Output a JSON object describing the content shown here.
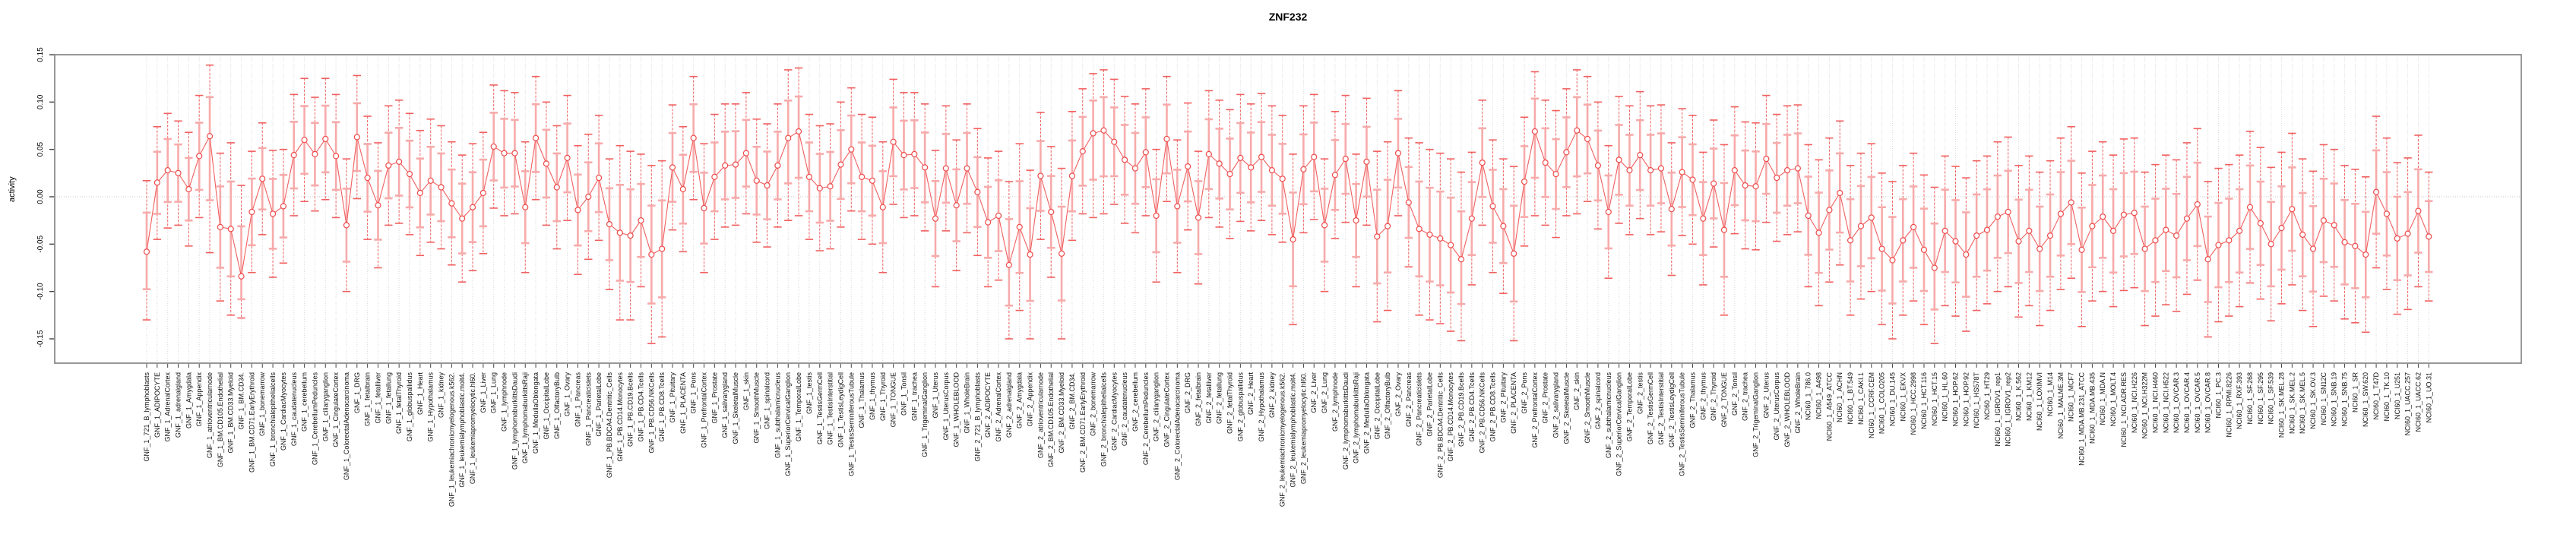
{
  "chart_data": {
    "type": "line",
    "title": "ZNF232",
    "xlabel": "",
    "ylabel": "activity",
    "ylim": [
      -0.18,
      0.15
    ],
    "y_ticks": [
      0.15,
      0.1,
      0.05,
      0.0,
      -0.05,
      -0.1,
      -0.15
    ],
    "grid": "vertical dotted per category, dotted horizontal line at 0",
    "legend": "none",
    "marker": "open-circle with inner and outer error bars",
    "colors": {
      "line": "#f15f5f",
      "outer_bar": "#f15f5f",
      "inner_bar": "#f7aaaa",
      "point_stroke": "#ee4b4b",
      "gridline": "#d9d9d9",
      "zero_line": "#c9c9c9",
      "frame": "#8c8c8c",
      "text": "#000000"
    },
    "categories": [
      "GNF_1_721_B_lymphoblasts",
      "GNF_1_ADIPOCYTE",
      "GNF_1_AdrenalCortex",
      "GNF_1_adrenalgland",
      "GNF_1_Amygdala",
      "GNF_1_Appendix",
      "GNF_1_atrioventricularnode",
      "GNF_1_BM.CD105.Endothelial",
      "GNF_1_BM.CD33.Myeloid",
      "GNF_1_BM.CD34.",
      "GNF_1_BM.CD71.EarlyErythroid",
      "GNF_1_bonemarrow",
      "GNF_1_bronchialepithelialcells",
      "GNF_1_CardiacMyocytes",
      "GNF_1_caudatenucleus",
      "GNF_1_cerebellum",
      "GNF_1_CerebellumPeduncles",
      "GNF_1_ciliaryganglion",
      "GNF_1_CingulateCortex",
      "GNF_1_ColorectalAdenocarcinoma",
      "GNF_1_DRG",
      "GNF_1_fetalbrain",
      "GNF_1_fetalliver",
      "GNF_1_fetallung",
      "GNF_1_fetalThyroid",
      "GNF_1_globuspallidus",
      "GNF_1_Heart",
      "GNF_1_Hypothalamus",
      "GNF_1_kidney",
      "GNF_1_leukemiachronicmyelogenous.k562.",
      "GNF_1_leukemialymphoblastic.molt4.",
      "GNF_1_leukemiapromyelocytic.hl60.",
      "GNF_1_Liver",
      "GNF_1_Lung",
      "GNF_1_lymphnode",
      "GNF_1_lymphomaburkittsDaudi",
      "GNF_1_lymphomaburkittsRaji",
      "GNF_1_MedullaOblongata",
      "GNF_1_OccipitalLobe",
      "GNF_1_OlfactoryBulb",
      "GNF_1_Ovary",
      "GNF_1_Pancreas",
      "GNF_1_Pancreaticislets",
      "GNF_1_ParietalLobe",
      "GNF_1_PB.BDCA4.Dentritic_Cells",
      "GNF_1_PB.CD14.Monocytes",
      "GNF_1_PB.CD19.Bcells",
      "GNF_1_PB.CD4.Tcells",
      "GNF_1_PB.CD56.NKCells",
      "GNF_1_PB.CD8.Tcells",
      "GNF_1_Pituitary",
      "GNF_1_PLACENTA",
      "GNF_1_Pons",
      "GNF_1_PrefrontalCortex",
      "GNF_1_Prostate",
      "GNF_1_salivarygland",
      "GNF_1_SkeletalMuscle",
      "GNF_1_skin",
      "GNF_1_SmoothMuscle",
      "GNF_1_spinalcord",
      "GNF_1_subthalamicnucleus",
      "GNF_1_SuperiorCervicalGanglion",
      "GNF_1_TemporalLobe",
      "GNF_1_testis",
      "GNF_1_TestisGermCell",
      "GNF_1_TestisInterstitial",
      "GNF_1_TestisLeydigCell",
      "GNF_1_TestisSeminiferousTubule",
      "GNF_1_Thalamus",
      "GNF_1_thymus",
      "GNF_1_Thyroid",
      "GNF_1_TONGUE",
      "GNF_1_Tonsil",
      "GNF_1_trachea",
      "GNF_1_TrigeminalGanglion",
      "GNF_1_Uterus",
      "GNF_1_UterusCorpus",
      "GNF_1_WHOLEBLOOD",
      "GNF_1_WholeBrain",
      "GNF_2_721_B_lymphoblasts",
      "GNF_2_ADIPOCYTE",
      "GNF_2_AdrenalCortex",
      "GNF_2_adrenalgland",
      "GNF_2_Amygdala",
      "GNF_2_Appendix",
      "GNF_2_atrioventricularnode",
      "GNF_2_BM.CD105.Endothelial",
      "GNF_2_BM.CD33.Myeloid",
      "GNF_2_BM.CD34.",
      "GNF_2_BM.CD71.EarlyErythroid",
      "GNF_2_bonemarrow",
      "GNF_2_bronchialepithelialcells",
      "GNF_2_CardiacMyocytes",
      "GNF_2_caudatenucleus",
      "GNF_2_cerebellum",
      "GNF_2_CerebellumPeduncles",
      "GNF_2_ciliaryganglion",
      "GNF_2_CingulateCortex",
      "GNF_2_ColorectalAdenocarcinoma",
      "GNF_2_DRG",
      "GNF_2_fetalbrain",
      "GNF_2_fetalliver",
      "GNF_2_fetallung",
      "GNF_2_fetalThyroid",
      "GNF_2_globuspallidus",
      "GNF_2_Heart",
      "GNF_2_Hypothalamus",
      "GNF_2_kidney",
      "GNF_2_leukemiachronicmyelogenous.k562.",
      "GNF_2_leukemialymphoblastic.molt4.",
      "GNF_2_leukemiapromyelocytic.hl60.",
      "GNF_2_Liver",
      "GNF_2_Lung",
      "GNF_2_lymphnode",
      "GNF_2_lymphomaburkittsDaudi",
      "GNF_2_lymphomaburkittsRaji",
      "GNF_2_MedullaOblongata",
      "GNF_2_OccipitalLobe",
      "GNF_2_OlfactoryBulb",
      "GNF_2_Ovary",
      "GNF_2_Pancreas",
      "GNF_2_Pancreaticislets",
      "GNF_2_ParietalLobe",
      "GNF_2_PB.BDCA4.Dentritic_Cells",
      "GNF_2_PB.CD14.Monocytes",
      "GNF_2_PB.CD19.Bcells",
      "GNF_2_PB.CD4.Tcells",
      "GNF_2_PB.CD56.NKCells",
      "GNF_2_PB.CD8.Tcells",
      "GNF_2_Pituitary",
      "GNF_2_PLACENTA",
      "GNF_2_Pons",
      "GNF_2_PrefrontalCortex",
      "GNF_2_Prostate",
      "GNF_2_salivarygland",
      "GNF_2_SkeletalMuscle",
      "GNF_2_skin",
      "GNF_2_SmoothMuscle",
      "GNF_2_spinalcord",
      "GNF_2_subthalamicnucleus",
      "GNF_2_SuperiorCervicalGanglion",
      "GNF_2_TemporalLobe",
      "GNF_2_testis",
      "GNF_2_TestisGermCell",
      "GNF_2_TestisInterstitial",
      "GNF_2_TestisLeydigCell",
      "GNF_2_TestisSeminiferousTubule",
      "GNF_2_Thalamus",
      "GNF_2_thymus",
      "GNF_2_Thyroid",
      "GNF_2_TONGUE",
      "GNF_2_Tonsil",
      "GNF_2_trachea",
      "GNF_2_TrigeminalGanglion",
      "GNF_2_Uterus",
      "GNF_2_UterusCorpus",
      "GNF_2_WHOLEBLOOD",
      "GNF_2_WholeBrain",
      "NCI60_1_786.0",
      "NCI60_1_A498",
      "NCI60_1_A549_ATCC",
      "NCI60_1_ACHN",
      "NCI60_1_BT.549",
      "NCI60_1_CAKI.1",
      "NCI60_1_CCRF.CEM",
      "NCI60_1_COLO205",
      "NCI60_1_DU.145",
      "NCI60_1_EKVX",
      "NCI60_1_HCC.2998",
      "NCI60_1_HCT.116",
      "NCI60_1_HCT.15",
      "NCI60_1_HL.60",
      "NCI60_1_HOP.62",
      "NCI60_1_HOP.92",
      "NCI60_1_HS578T",
      "NCI60_1_HT29",
      "NCI60_1_IGROV1_rep1",
      "NCI60_1_IGROV1_rep2",
      "NCI60_1_K.562",
      "NCI60_1_KM12",
      "NCI60_1_LOXIMVI",
      "NCI60_1_M14",
      "NCI60_1_MALME.3M",
      "NCI60_1_MCF7",
      "NCI60_1_MDA.MB.231_ATCC",
      "NCI60_1_MDA.MB.435",
      "NCI60_1_MDA.N",
      "NCI60_1_MOLT.4",
      "NCI60_1_NCI.ADR.RES",
      "NCI60_1_NCI.H226",
      "NCI60_1_NCI.H322M",
      "NCI60_1_NCI.H460",
      "NCI60_1_NCI.H522",
      "NCI60_1_OVCAR.3",
      "NCI60_1_OVCAR.4",
      "NCI60_1_OVCAR.5",
      "NCI60_1_OVCAR.8",
      "NCI60_1_PC.3",
      "NCI60_1_RPMI.8226",
      "NCI60_1_RXF.393",
      "NCI60_1_SF.268",
      "NCI60_1_SF.295",
      "NCI60_1_SF.539",
      "NCI60_1_SK.MEL.28",
      "NCI60_1_SK.MEL.2",
      "NCI60_1_SK.MEL.5",
      "NCI60_1_SK.OV.3",
      "NCI60_1_SN12C",
      "NCI60_1_SNB.19",
      "NCI60_1_SNB.75",
      "NCI60_1_SR",
      "NCI60_1_SW.620",
      "NCI60_1_T47D",
      "NCI60_1_TK.10",
      "NCI60_1_U251",
      "NCI60_1_UACC.257",
      "NCI60_1_UACC.62",
      "NCI60_1_UO.31"
    ],
    "values": [
      -0.058,
      0.015,
      0.028,
      0.025,
      0.008,
      0.043,
      0.064,
      -0.032,
      -0.034,
      -0.084,
      -0.016,
      0.019,
      -0.018,
      -0.01,
      0.044,
      0.06,
      0.045,
      0.061,
      0.043,
      -0.03,
      0.063,
      0.02,
      -0.009,
      0.033,
      0.037,
      0.024,
      0.004,
      0.017,
      0.01,
      -0.007,
      -0.023,
      -0.011,
      0.004,
      0.053,
      0.046,
      0.046,
      -0.011,
      0.062,
      0.035,
      0.01,
      0.041,
      -0.014,
      0.0,
      0.02,
      -0.029,
      -0.038,
      -0.041,
      -0.025,
      -0.061,
      -0.055,
      0.031,
      0.008,
      0.062,
      -0.012,
      0.021,
      0.033,
      0.034,
      0.046,
      0.017,
      0.012,
      0.033,
      0.062,
      0.069,
      0.021,
      0.009,
      0.011,
      0.034,
      0.05,
      0.021,
      0.017,
      -0.011,
      0.058,
      0.044,
      0.045,
      0.031,
      -0.023,
      0.03,
      -0.009,
      0.03,
      0.005,
      -0.027,
      -0.02,
      -0.072,
      -0.032,
      -0.061,
      0.022,
      -0.016,
      -0.06,
      0.022,
      0.048,
      0.067,
      0.07,
      0.058,
      0.039,
      0.03,
      0.047,
      -0.02,
      0.061,
      -0.01,
      0.032,
      -0.022,
      0.045,
      0.035,
      0.024,
      0.041,
      0.031,
      0.042,
      0.028,
      0.019,
      -0.045,
      0.029,
      0.042,
      -0.03,
      0.023,
      0.04,
      -0.025,
      0.037,
      -0.042,
      -0.031,
      0.046,
      -0.006,
      -0.034,
      -0.04,
      -0.044,
      -0.051,
      -0.066,
      -0.023,
      0.036,
      -0.01,
      -0.031,
      -0.06,
      0.016,
      0.069,
      0.036,
      0.024,
      0.047,
      0.07,
      0.061,
      0.033,
      -0.016,
      0.039,
      0.028,
      0.044,
      0.028,
      0.03,
      -0.013,
      0.026,
      0.018,
      -0.023,
      0.014,
      -0.035,
      0.028,
      0.012,
      0.011,
      0.04,
      0.02,
      0.028,
      0.03,
      -0.02,
      -0.038,
      -0.014,
      0.004,
      -0.046,
      -0.031,
      -0.022,
      -0.055,
      -0.067,
      -0.046,
      -0.032,
      -0.056,
      -0.075,
      -0.036,
      -0.047,
      -0.061,
      -0.041,
      -0.035,
      -0.021,
      -0.016,
      -0.047,
      -0.036,
      -0.055,
      -0.041,
      -0.018,
      -0.006,
      -0.056,
      -0.031,
      -0.021,
      -0.036,
      -0.019,
      -0.017,
      -0.055,
      -0.046,
      -0.035,
      -0.041,
      -0.023,
      -0.008,
      -0.066,
      -0.051,
      -0.046,
      -0.036,
      -0.011,
      -0.028,
      -0.05,
      -0.033,
      -0.013,
      -0.04,
      -0.055,
      -0.025,
      -0.03,
      -0.048,
      -0.052,
      -0.061,
      0.005,
      -0.018,
      -0.044,
      -0.039,
      -0.015,
      -0.042
    ],
    "ci_low": [
      -0.13,
      -0.045,
      -0.033,
      -0.03,
      -0.052,
      -0.022,
      -0.059,
      -0.11,
      -0.125,
      -0.128,
      -0.08,
      -0.04,
      -0.085,
      -0.07,
      -0.02,
      -0.005,
      -0.015,
      -0.003,
      -0.022,
      -0.1,
      -0.002,
      -0.045,
      -0.075,
      -0.03,
      -0.028,
      -0.04,
      -0.062,
      -0.048,
      -0.055,
      -0.072,
      -0.09,
      -0.078,
      -0.06,
      -0.012,
      -0.02,
      -0.018,
      -0.08,
      -0.003,
      -0.03,
      -0.055,
      -0.025,
      -0.082,
      -0.066,
      -0.046,
      -0.098,
      -0.13,
      -0.13,
      -0.095,
      -0.155,
      -0.148,
      -0.035,
      -0.058,
      -0.003,
      -0.08,
      -0.045,
      -0.032,
      -0.03,
      -0.018,
      -0.048,
      -0.053,
      -0.032,
      -0.025,
      -0.02,
      -0.045,
      -0.057,
      -0.055,
      -0.032,
      -0.015,
      -0.045,
      -0.05,
      -0.08,
      -0.008,
      -0.022,
      -0.02,
      -0.036,
      -0.095,
      -0.036,
      -0.078,
      -0.038,
      -0.062,
      -0.095,
      -0.088,
      -0.15,
      -0.12,
      -0.15,
      -0.045,
      -0.085,
      -0.15,
      -0.046,
      -0.018,
      -0.022,
      -0.018,
      -0.008,
      -0.028,
      -0.038,
      -0.02,
      -0.09,
      -0.005,
      -0.08,
      -0.035,
      -0.092,
      -0.022,
      -0.032,
      -0.044,
      -0.026,
      -0.036,
      -0.025,
      -0.04,
      -0.048,
      -0.135,
      -0.038,
      -0.024,
      -0.1,
      -0.044,
      -0.027,
      -0.095,
      -0.03,
      -0.132,
      -0.12,
      -0.02,
      -0.074,
      -0.125,
      -0.13,
      -0.134,
      -0.142,
      -0.152,
      -0.093,
      -0.03,
      -0.08,
      -0.102,
      -0.152,
      -0.052,
      -0.02,
      -0.03,
      -0.043,
      -0.02,
      -0.018,
      -0.005,
      -0.034,
      -0.086,
      -0.028,
      -0.04,
      -0.023,
      -0.04,
      -0.037,
      -0.083,
      -0.041,
      -0.05,
      -0.093,
      -0.053,
      -0.125,
      -0.039,
      -0.055,
      -0.056,
      -0.027,
      -0.047,
      -0.04,
      -0.037,
      -0.095,
      -0.115,
      -0.09,
      -0.072,
      -0.125,
      -0.108,
      -0.1,
      -0.135,
      -0.15,
      -0.125,
      -0.11,
      -0.135,
      -0.155,
      -0.115,
      -0.126,
      -0.142,
      -0.12,
      -0.113,
      -0.1,
      -0.095,
      -0.127,
      -0.115,
      -0.136,
      -0.12,
      -0.098,
      -0.086,
      -0.137,
      -0.11,
      -0.1,
      -0.116,
      -0.099,
      -0.096,
      -0.136,
      -0.126,
      -0.114,
      -0.121,
      -0.103,
      -0.088,
      -0.148,
      -0.132,
      -0.126,
      -0.116,
      -0.091,
      -0.108,
      -0.131,
      -0.113,
      -0.093,
      -0.12,
      -0.137,
      -0.105,
      -0.11,
      -0.129,
      -0.133,
      -0.143,
      -0.075,
      -0.098,
      -0.124,
      -0.119,
      -0.095,
      -0.11
    ],
    "ci_high": [
      0.017,
      0.074,
      0.088,
      0.08,
      0.068,
      0.107,
      0.139,
      0.046,
      0.057,
      0.012,
      0.048,
      0.078,
      0.049,
      0.05,
      0.108,
      0.125,
      0.105,
      0.125,
      0.108,
      0.04,
      0.128,
      0.085,
      0.057,
      0.096,
      0.102,
      0.088,
      0.07,
      0.082,
      0.075,
      0.058,
      0.044,
      0.056,
      0.068,
      0.118,
      0.112,
      0.11,
      0.058,
      0.127,
      0.1,
      0.075,
      0.107,
      0.054,
      0.066,
      0.086,
      0.04,
      0.054,
      0.048,
      0.045,
      0.033,
      0.038,
      0.097,
      0.074,
      0.127,
      0.056,
      0.087,
      0.098,
      0.098,
      0.11,
      0.082,
      0.077,
      0.098,
      0.134,
      0.136,
      0.087,
      0.075,
      0.077,
      0.1,
      0.115,
      0.087,
      0.084,
      0.058,
      0.124,
      0.11,
      0.11,
      0.098,
      0.049,
      0.096,
      0.06,
      0.098,
      0.072,
      0.041,
      0.048,
      0.016,
      0.056,
      0.028,
      0.089,
      0.053,
      0.03,
      0.09,
      0.114,
      0.13,
      0.134,
      0.124,
      0.106,
      0.098,
      0.114,
      0.05,
      0.127,
      0.06,
      0.099,
      0.048,
      0.112,
      0.102,
      0.092,
      0.108,
      0.098,
      0.109,
      0.096,
      0.086,
      0.045,
      0.096,
      0.108,
      0.04,
      0.09,
      0.107,
      0.045,
      0.104,
      0.048,
      0.058,
      0.112,
      0.062,
      0.057,
      0.05,
      0.046,
      0.04,
      0.026,
      0.047,
      0.102,
      0.06,
      0.04,
      0.032,
      0.084,
      0.132,
      0.102,
      0.091,
      0.114,
      0.134,
      0.127,
      0.1,
      0.054,
      0.106,
      0.096,
      0.111,
      0.096,
      0.097,
      0.057,
      0.093,
      0.086,
      0.047,
      0.081,
      0.055,
      0.095,
      0.079,
      0.078,
      0.107,
      0.087,
      0.096,
      0.097,
      0.055,
      0.039,
      0.062,
      0.08,
      0.033,
      0.046,
      0.056,
      0.025,
      0.016,
      0.033,
      0.046,
      0.023,
      0.01,
      0.043,
      0.032,
      0.02,
      0.038,
      0.043,
      0.058,
      0.063,
      0.033,
      0.043,
      0.026,
      0.038,
      0.062,
      0.074,
      0.025,
      0.048,
      0.058,
      0.044,
      0.061,
      0.062,
      0.026,
      0.034,
      0.044,
      0.039,
      0.057,
      0.072,
      0.016,
      0.03,
      0.034,
      0.044,
      0.069,
      0.052,
      0.031,
      0.047,
      0.067,
      0.04,
      0.027,
      0.055,
      0.05,
      0.033,
      0.029,
      0.021,
      0.085,
      0.062,
      0.036,
      0.041,
      0.065,
      0.026
    ]
  }
}
